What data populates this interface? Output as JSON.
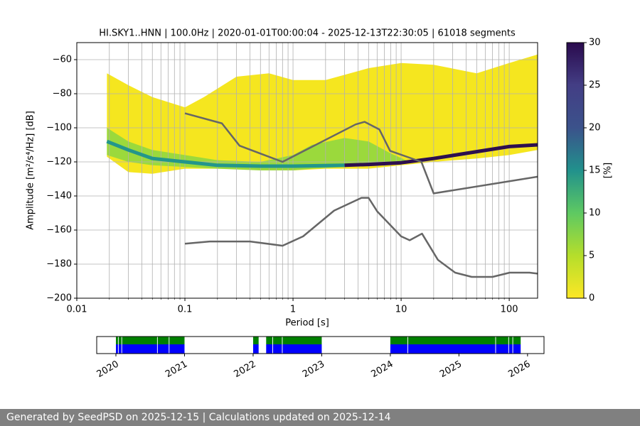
{
  "chart_data": [
    {
      "type": "line",
      "title": "HI.SKY1..HNN | 100.0Hz | 2020-01-01T00:00:04 - 2025-12-13T22:30:05 | 61018 segments",
      "xlabel": "Period [s]",
      "ylabel": "Amplitude [m²/s⁴/Hz] [dB]",
      "xscale": "log",
      "xlim": [
        0.01,
        183
      ],
      "xticks": [
        0.01,
        0.1,
        1,
        10,
        100
      ],
      "ylim": [
        -200,
        -50
      ],
      "yticks": [
        {
          "value": -200,
          "label": "−200"
        },
        {
          "value": -180,
          "label": "−180"
        },
        {
          "value": -160,
          "label": "−160"
        },
        {
          "value": -140,
          "label": "−140"
        },
        {
          "value": -120,
          "label": "−120"
        },
        {
          "value": -100,
          "label": "−100"
        },
        {
          "value": -80,
          "label": "−80"
        },
        {
          "value": -60,
          "label": "−60"
        }
      ],
      "grid": true,
      "minor_grid": true,
      "areas": [
        {
          "color": "#f5e61f",
          "x": [
            0.019,
            0.03,
            0.05,
            0.1,
            0.15,
            0.3,
            0.6,
            1,
            2,
            5,
            10,
            20,
            50,
            100,
            183
          ],
          "upper": [
            -68,
            -75,
            -82,
            -88,
            -82,
            -70,
            -68,
            -72,
            -72,
            -65,
            -62,
            -63,
            -68,
            -62,
            -57
          ],
          "lower": [
            -117,
            -126,
            -127,
            -124,
            -124,
            -124,
            -124,
            -125,
            -124,
            -124,
            -122,
            -120,
            -118,
            -116,
            -113
          ]
        },
        {
          "color": "#9bd93c",
          "x": [
            0.019,
            0.03,
            0.05,
            0.1,
            0.2,
            0.5,
            1,
            1.5,
            3,
            5,
            8,
            12
          ],
          "upper": [
            -100,
            -108,
            -113,
            -116,
            -119,
            -120,
            -116,
            -110,
            -106,
            -108,
            -115,
            -120
          ],
          "lower": [
            -116,
            -120,
            -122,
            -123,
            -124,
            -125,
            -125,
            -124,
            -123,
            -122,
            -121,
            -120
          ]
        }
      ],
      "series": [
        {
          "color": "#23968b",
          "x": [
            0.019,
            0.03,
            0.05,
            0.1,
            0.2,
            0.5,
            1,
            3
          ],
          "values": [
            -108,
            -113,
            -118,
            -120,
            -122,
            -122.5,
            -122.5,
            -122
          ]
        },
        {
          "color": "#2d0f4f",
          "x": [
            3,
            5,
            10,
            20,
            50,
            100,
            183
          ],
          "values": [
            -122,
            -121.5,
            -120.5,
            -118,
            -114,
            -111,
            -110
          ]
        },
        {
          "color": "#666666",
          "x": [
            0.1,
            0.22,
            0.32,
            0.8,
            3.8,
            4.6,
            6.3,
            7.9,
            15.4,
            20,
            183
          ],
          "values": [
            -91.5,
            -97.4,
            -110.5,
            -120,
            -98,
            -96.5,
            -101,
            -113.5,
            -120,
            -138.5,
            -128.7
          ]
        },
        {
          "color": "#666666",
          "x": [
            0.1,
            0.17,
            0.4,
            0.8,
            1.24,
            2.4,
            4.3,
            5,
            6,
            10,
            12,
            15.6,
            21.9,
            31.6,
            45,
            70,
            101,
            154,
            183
          ],
          "values": [
            -168,
            -166.7,
            -166.7,
            -169.2,
            -163.7,
            -148.6,
            -141.1,
            -141.1,
            -149,
            -163.7,
            -166,
            -162.1,
            -177.5,
            -185,
            -187.5,
            -187.5,
            -185,
            -185,
            -185.6
          ]
        }
      ],
      "colorbar": {
        "label": "[%]",
        "clim": [
          0,
          30
        ],
        "ticks": [
          0,
          5,
          10,
          15,
          20,
          25,
          30
        ],
        "colormap": [
          "#fde725",
          "#b5de2b",
          "#5ec962",
          "#21918c",
          "#3b528b",
          "#433e85",
          "#2a0a4d"
        ]
      }
    },
    {
      "type": "timeline",
      "xlim": [
        2019.72,
        2026.24
      ],
      "xticks": [
        2020,
        2021,
        2022,
        2023,
        2024,
        2025,
        2026
      ],
      "series": [
        {
          "color": "#008000",
          "segments": [
            [
              2020.0,
              2020.03
            ],
            [
              2020.04,
              2020.08
            ],
            [
              2020.09,
              2020.6
            ],
            [
              2020.61,
              2020.77
            ],
            [
              2020.78,
              2021.0
            ],
            [
              2022.0,
              2022.08
            ],
            [
              2022.19,
              2022.28
            ],
            [
              2022.29,
              2022.42
            ],
            [
              2022.43,
              2023.0
            ],
            [
              2024.0,
              2024.25
            ],
            [
              2024.26,
              2025.53
            ],
            [
              2025.54,
              2025.72
            ],
            [
              2025.73,
              2025.78
            ],
            [
              2025.79,
              2025.9
            ]
          ]
        },
        {
          "color": "#0000ff",
          "segments": [
            [
              2020.0,
              2020.03
            ],
            [
              2020.04,
              2020.08
            ],
            [
              2020.09,
              2020.6
            ],
            [
              2020.61,
              2020.77
            ],
            [
              2020.78,
              2021.0
            ],
            [
              2022.0,
              2022.08
            ],
            [
              2022.19,
              2022.28
            ],
            [
              2022.29,
              2022.42
            ],
            [
              2022.43,
              2023.0
            ],
            [
              2024.0,
              2024.25
            ],
            [
              2024.26,
              2025.53
            ],
            [
              2025.54,
              2025.72
            ],
            [
              2025.73,
              2025.78
            ],
            [
              2025.79,
              2025.9
            ]
          ]
        }
      ]
    }
  ],
  "footer": "Generated by SeedPSD on 2025-12-15 | Calculations updated on 2025-12-14"
}
